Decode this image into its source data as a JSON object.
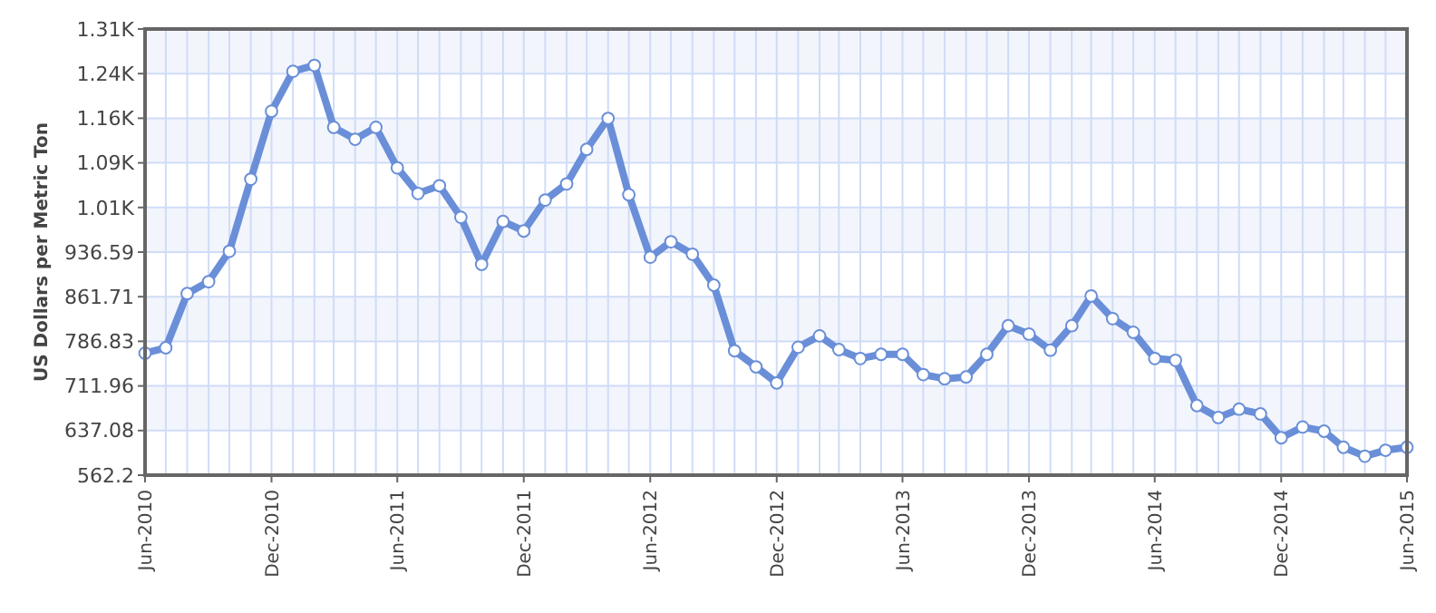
{
  "chart_data": {
    "type": "line",
    "ylabel": "US Dollars per Metric Ton",
    "x": [
      "2010-06",
      "2010-07",
      "2010-08",
      "2010-09",
      "2010-10",
      "2010-11",
      "2010-12",
      "2011-01",
      "2011-02",
      "2011-03",
      "2011-04",
      "2011-05",
      "2011-06",
      "2011-07",
      "2011-08",
      "2011-09",
      "2011-10",
      "2011-11",
      "2011-12",
      "2012-01",
      "2012-02",
      "2012-03",
      "2012-04",
      "2012-05",
      "2012-06",
      "2012-07",
      "2012-08",
      "2012-09",
      "2012-10",
      "2012-11",
      "2012-12",
      "2013-01",
      "2013-02",
      "2013-03",
      "2013-04",
      "2013-05",
      "2013-06",
      "2013-07",
      "2013-08",
      "2013-09",
      "2013-10",
      "2013-11",
      "2013-12",
      "2014-01",
      "2014-02",
      "2014-03",
      "2014-04",
      "2014-05",
      "2014-06",
      "2014-07",
      "2014-08",
      "2014-09",
      "2014-10",
      "2014-11",
      "2014-12",
      "2015-01",
      "2015-02",
      "2015-03",
      "2015-04",
      "2015-05",
      "2015-06"
    ],
    "series": [
      {
        "color": "#6a8fd8",
        "values": [
          767,
          776,
          867,
          887,
          938,
          1059,
          1173,
          1240,
          1250,
          1146,
          1126,
          1146,
          1078,
          1035,
          1048,
          995,
          916,
          988,
          972,
          1024,
          1051,
          1109,
          1161,
          1033,
          928,
          954,
          933,
          881,
          771,
          744,
          717,
          777,
          796,
          773,
          758,
          765,
          765,
          731,
          724,
          727,
          765,
          813,
          799,
          772,
          813,
          863,
          825,
          802,
          758,
          755,
          679,
          659,
          673,
          665,
          625,
          643,
          636,
          609,
          594,
          604,
          609
        ]
      }
    ],
    "xlim": [
      "2010-06",
      "2015-06"
    ],
    "xticks": [
      {
        "value": "2010-06",
        "label": "Jun-2010"
      },
      {
        "value": "2010-12",
        "label": "Dec-2010"
      },
      {
        "value": "2011-06",
        "label": "Jun-2011"
      },
      {
        "value": "2011-12",
        "label": "Dec-2011"
      },
      {
        "value": "2012-06",
        "label": "Jun-2012"
      },
      {
        "value": "2012-12",
        "label": "Dec-2012"
      },
      {
        "value": "2013-06",
        "label": "Jun-2013"
      },
      {
        "value": "2013-12",
        "label": "Dec-2013"
      },
      {
        "value": "2014-06",
        "label": "Jun-2014"
      },
      {
        "value": "2014-12",
        "label": "Dec-2014"
      },
      {
        "value": "2015-06",
        "label": "Jun-2015"
      }
    ],
    "ylim": [
      562.2,
      1310.97
    ],
    "yticks": [
      562.2,
      637.08,
      711.96,
      786.83,
      861.71,
      936.59,
      {
        "value": 1011.46,
        "label": "1.01K"
      },
      {
        "value": 1086.34,
        "label": "1.09K"
      },
      {
        "value": 1161.22,
        "label": "1.16K"
      },
      {
        "value": 1236.1,
        "label": "1.24K"
      },
      {
        "value": 1310.97,
        "label": "1.31K"
      }
    ],
    "grid": true,
    "marker": "circle",
    "line_style": "solid"
  }
}
